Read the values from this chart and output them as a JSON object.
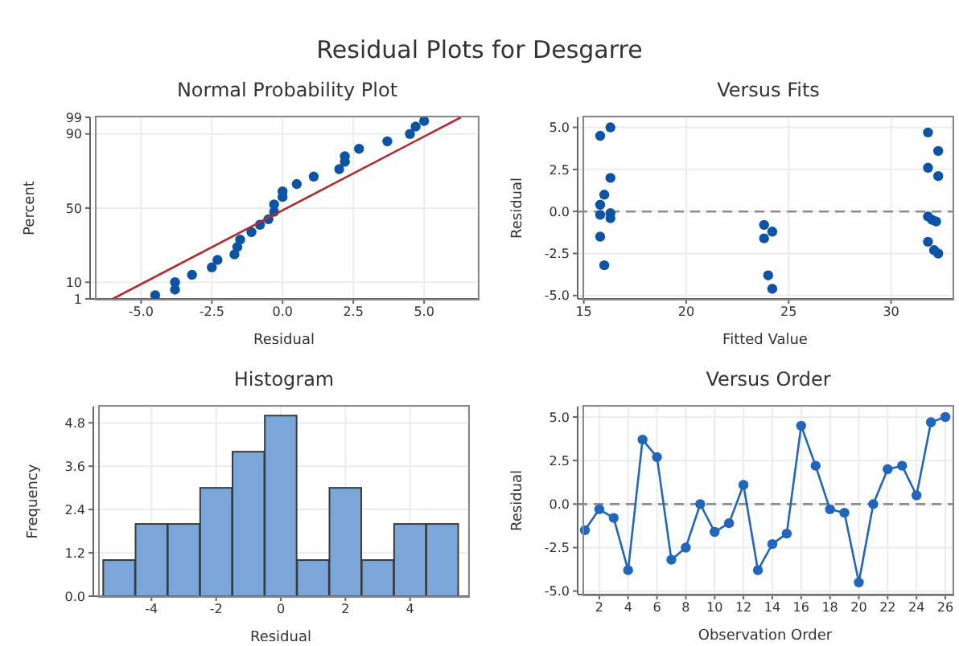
{
  "chart_data": [
    {
      "type": "scatter",
      "title": "Normal Probability Plot",
      "annotations": [
        "Residual Plots for Desgarre"
      ],
      "xlabel": "Residual",
      "ylabel": "Percent",
      "marker": "circle",
      "grid": true,
      "xlim": [
        -6.8,
        6.9
      ],
      "xticks": [
        {
          "value": -5,
          "label": "-5.0"
        },
        -2.5,
        {
          "value": 0,
          "label": "0.0"
        },
        2.5,
        {
          "value": 5,
          "label": "5.0"
        }
      ],
      "ylim": [
        1,
        99
      ],
      "yticks": [
        1,
        10,
        50,
        90,
        99
      ],
      "series": [
        {
          "type": "scatter",
          "color": "#0a54a8",
          "x": [
            -4.5,
            -3.8,
            -3.8,
            -3.2,
            -2.5,
            -2.3,
            -1.7,
            -1.6,
            -1.5,
            -1.1,
            -0.8,
            -0.5,
            -0.3,
            -0.3,
            0.0,
            0.0,
            0.5,
            1.1,
            2.0,
            2.2,
            2.2,
            2.7,
            3.7,
            4.5,
            4.7,
            5.0
          ],
          "values": [
            3,
            6,
            10,
            14,
            18,
            22,
            25,
            29,
            33,
            37,
            41,
            44,
            48,
            52,
            56,
            59,
            63,
            67,
            71,
            75,
            78,
            82,
            86,
            90,
            94,
            97
          ]
        },
        {
          "type": "line",
          "marker": "none",
          "color": "#b22a2a",
          "x": [
            -6.0,
            6.3
          ],
          "values": [
            1,
            99
          ]
        }
      ]
    },
    {
      "type": "scatter",
      "title": "Versus Fits",
      "xlabel": "Fitted Value",
      "ylabel": "Residual",
      "marker": "circle",
      "grid": true,
      "xlim": [
        14.7,
        33
      ],
      "xticks": [
        15,
        20,
        25,
        30
      ],
      "ylim": [
        -5.2,
        5.6
      ],
      "yticks": [
        {
          "value": -5,
          "label": "-5.0"
        },
        -2.5,
        {
          "value": 0,
          "label": "0.0"
        },
        2.5,
        {
          "value": 5,
          "label": "5.0"
        }
      ],
      "ref_lines": [
        {
          "axis": "y",
          "value": 0,
          "color": "#8c8c8c",
          "line_style": "dashed"
        }
      ],
      "series": [
        {
          "type": "scatter",
          "color": "#0a54a8",
          "x": [
            15.8,
            16.3,
            16.3,
            16.0,
            15.8,
            15.8,
            16.3,
            16.3,
            15.8,
            16.0,
            23.8,
            23.8,
            24.2,
            24.0,
            24.2,
            31.8,
            32.3,
            31.8,
            32.3,
            31.8,
            32.0,
            32.2,
            31.8,
            32.1,
            32.3
          ],
          "values": [
            4.5,
            5.0,
            2.0,
            1.0,
            0.4,
            -0.2,
            -0.1,
            -0.4,
            -1.5,
            -3.2,
            -0.8,
            -1.6,
            -1.2,
            -3.8,
            -4.6,
            4.7,
            3.6,
            2.6,
            2.1,
            -0.3,
            -0.5,
            -0.6,
            -1.8,
            -2.3,
            -2.5
          ]
        }
      ]
    },
    {
      "type": "histogram",
      "title": "Histogram",
      "xlabel": "Residual",
      "ylabel": "Frequency",
      "grid": true,
      "color": "#7ba6d9",
      "xlim": [
        -5.8,
        5.8
      ],
      "xticks": [
        -4,
        -2,
        0,
        2,
        4
      ],
      "ylim": [
        0,
        5.25
      ],
      "yticks": [
        {
          "value": 0,
          "label": "0.0"
        },
        1.2,
        2.4,
        3.6,
        4.8
      ],
      "bins": [
        -5.5,
        -4.5,
        -3.5,
        -2.5,
        -1.5,
        -0.5,
        0.5,
        1.5,
        2.5,
        3.5,
        4.5,
        5.5
      ],
      "values": [
        1,
        2,
        2,
        3,
        4,
        5,
        1,
        3,
        1,
        2,
        2
      ]
    },
    {
      "type": "line",
      "title": "Versus Order",
      "xlabel": "Observation Order",
      "ylabel": "Residual",
      "marker": "circle",
      "grid": true,
      "xlim": [
        0.5,
        26.5
      ],
      "xticks": [
        2,
        4,
        6,
        8,
        10,
        12,
        14,
        16,
        18,
        20,
        22,
        24,
        26
      ],
      "ylim": [
        -5.2,
        5.6
      ],
      "yticks": [
        {
          "value": -5,
          "label": "-5.0"
        },
        -2.5,
        {
          "value": 0,
          "label": "0.0"
        },
        2.5,
        {
          "value": 5,
          "label": "5.0"
        }
      ],
      "ref_lines": [
        {
          "axis": "y",
          "value": 0,
          "color": "#8c8c8c",
          "line_style": "dashed"
        }
      ],
      "series": [
        {
          "color": "#1f66c1",
          "x": [
            1,
            2,
            3,
            4,
            5,
            6,
            7,
            8,
            9,
            10,
            11,
            12,
            13,
            14,
            15,
            16,
            17,
            18,
            19,
            20,
            21,
            22,
            23,
            24,
            25,
            26
          ],
          "values": [
            -1.5,
            -0.3,
            -0.8,
            -3.8,
            3.7,
            2.7,
            -3.2,
            -2.5,
            0.0,
            -1.6,
            -1.1,
            1.1,
            -3.8,
            -2.3,
            -1.7,
            4.5,
            2.2,
            -0.3,
            -0.5,
            -4.5,
            0.0,
            2.0,
            2.2,
            0.5,
            4.7,
            5.0
          ]
        }
      ]
    }
  ]
}
